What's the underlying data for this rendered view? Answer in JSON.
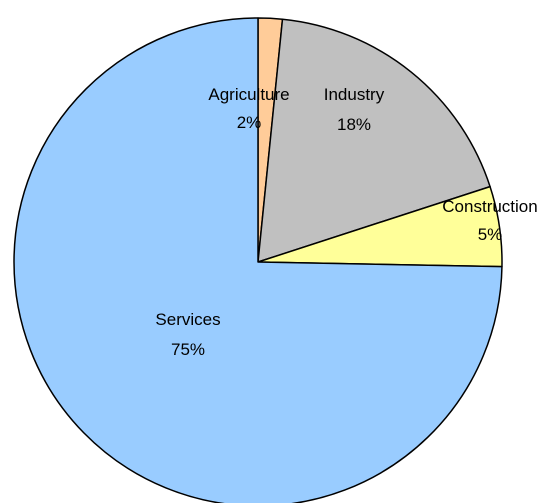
{
  "chart_data": {
    "type": "pie",
    "title": "",
    "start_angle_deg": 0,
    "direction": "clockwise",
    "labels_position": "on-slices",
    "legend": "none",
    "slices": [
      {
        "label": "Agriculture",
        "value": 1.6,
        "value_label": "2%",
        "color": "#FFCC99"
      },
      {
        "label": "Industry",
        "value": 18.4,
        "value_label": "18%",
        "color": "#C0C0C0"
      },
      {
        "label": "Construction",
        "value": 5.3,
        "value_label": "5%",
        "color": "#FFFF99"
      },
      {
        "label": "Services",
        "value": 74.7,
        "value_label": "75%",
        "color": "#99CCFF"
      }
    ]
  }
}
